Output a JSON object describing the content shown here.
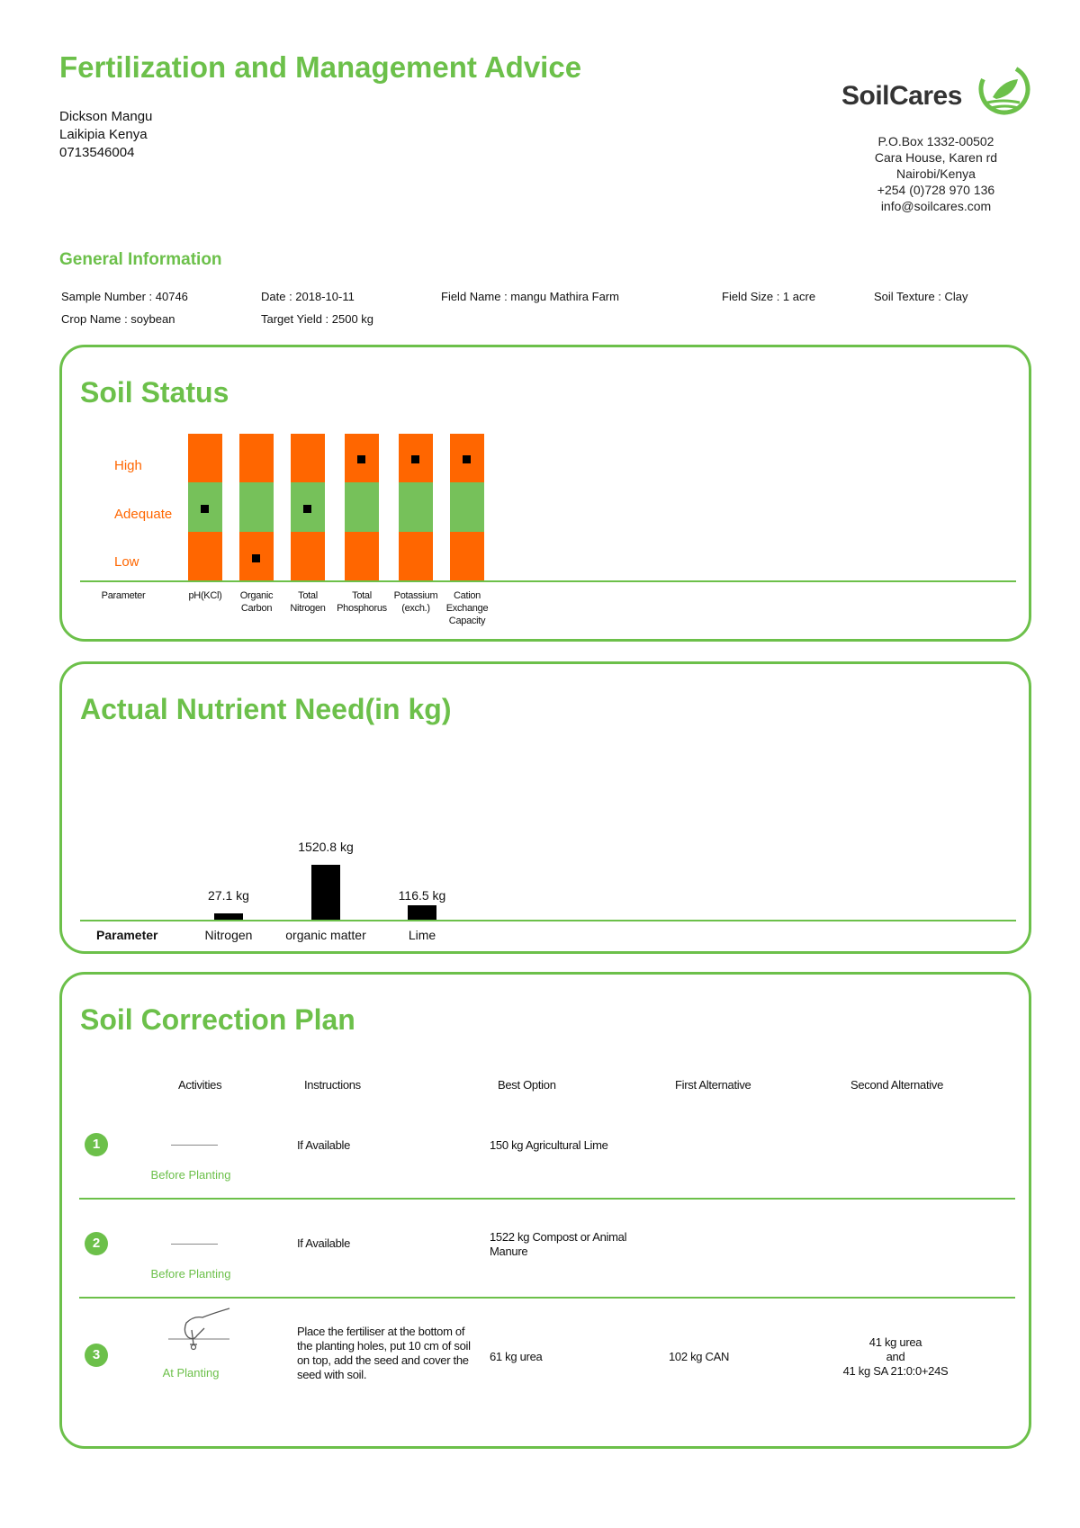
{
  "header": {
    "title": "Fertilization and Management Advice",
    "client": {
      "name": "Dickson Mangu",
      "location": "Laikipia Kenya",
      "phone": "0713546004"
    },
    "brand": "SoilCares",
    "address": [
      "P.O.Box 1332-00502",
      "Cara House, Karen rd",
      "Nairobi/Kenya",
      "+254 (0)728 970 136",
      "info@soilcares.com"
    ]
  },
  "general": {
    "heading": "General Information",
    "sample_number": "Sample Number : 40746",
    "date": "Date : 2018-10-11",
    "field_name": "Field Name : mangu Mathira Farm",
    "field_size": "Field Size : 1 acre",
    "soil_texture": "Soil Texture : Clay",
    "crop_name": "Crop Name : soybean",
    "target_yield": "Target Yield : 2500 kg"
  },
  "soil_status": {
    "title": "Soil Status",
    "levels": {
      "high": "High",
      "adequate": "Adequate",
      "low": "Low"
    },
    "parameter_label": "Parameter",
    "colors": {
      "high": "#ff6600",
      "adequate": "#76c15a",
      "low": "#ff6600"
    },
    "parameters": [
      {
        "label_lines": [
          "pH(KCl)"
        ],
        "status": "adequate"
      },
      {
        "label_lines": [
          "Organic",
          "Carbon"
        ],
        "status": "low"
      },
      {
        "label_lines": [
          "Total",
          "Nitrogen"
        ],
        "status": "adequate"
      },
      {
        "label_lines": [
          "Total",
          "Phosphorus"
        ],
        "status": "high"
      },
      {
        "label_lines": [
          "Potassium",
          "(exch.)"
        ],
        "status": "high"
      },
      {
        "label_lines": [
          "Cation",
          "Exchange",
          "Capacity"
        ],
        "status": "high"
      }
    ]
  },
  "chart_data": {
    "type": "bar",
    "title": "Actual Nutrient Need(in kg)",
    "xlabel": "Parameter",
    "categories": [
      "Nitrogen",
      "organic matter",
      "Lime"
    ],
    "values": [
      27.1,
      1520.8,
      116.5
    ],
    "value_labels": [
      "27.1 kg",
      "1520.8 kg",
      "116.5 kg"
    ]
  },
  "correction_plan": {
    "title": "Soil Correction Plan",
    "headers": {
      "activities": "Activities",
      "instructions": "Instructions",
      "best": "Best Option",
      "first_alt": "First Alternative",
      "second_alt": "Second Alternative"
    },
    "rows": [
      {
        "num": "1",
        "stage": "Before Planting",
        "instructions": "If Available",
        "best": "150 kg Agricultural Lime",
        "first_alt": "",
        "second_alt": ""
      },
      {
        "num": "2",
        "stage": "Before Planting",
        "instructions": "If Available",
        "best": "1522 kg Compost or Animal Manure",
        "first_alt": "",
        "second_alt": ""
      },
      {
        "num": "3",
        "stage": "At Planting",
        "instructions": "Place the fertiliser at the bottom of the planting holes, put 10 cm of soil on top, add the seed and cover the seed with soil.",
        "best": "61 kg urea",
        "first_alt": "102 kg CAN",
        "second_alt_lines": [
          "41 kg urea",
          "and",
          "41 kg SA 21:0:0+24S"
        ]
      }
    ]
  }
}
